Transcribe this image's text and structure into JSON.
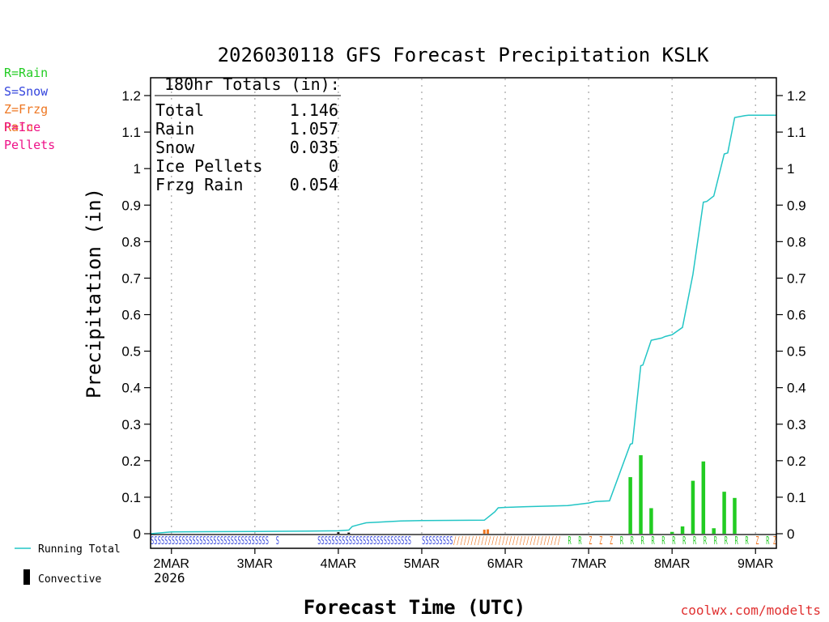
{
  "colors": {
    "rain": "#22cc22",
    "snow": "#3344dd",
    "frzg_rain": "#ee7722",
    "ice_pellets": "#ee1188",
    "running_total": "#22c5c5",
    "convective": "#000000",
    "credit": "#e03030",
    "grid": "#aaaaaa"
  },
  "precip_legend": [
    {
      "label": "R=Rain",
      "color_key": "rain"
    },
    {
      "label": "S=Snow",
      "color_key": "snow"
    },
    {
      "label": "Z=Frzg Rain",
      "color_key": "frzg_rain"
    },
    {
      "label": "P=Ice Pellets",
      "color_key": "ice_pellets"
    }
  ],
  "footer": {
    "running_total_label": "Running Total",
    "convective_label": "Convective",
    "credit": "coolwx.com/modelts"
  },
  "chart_data": {
    "type": "bar",
    "title": "2026030118 GFS Forecast Precipitation KSLK",
    "xlabel": "Forecast Time (UTC)",
    "ylabel": "Precipitation (in)",
    "ylim": [
      0,
      1.25
    ],
    "y_ticks": [
      0,
      0.1,
      0.2,
      0.3,
      0.4,
      0.5,
      0.6,
      0.7,
      0.8,
      0.9,
      1,
      1.1,
      1.2
    ],
    "y_tick_labels": [
      "0",
      "0.1",
      "0.2",
      "0.3",
      "0.4",
      "0.5",
      "0.6",
      "0.7",
      "0.8",
      "0.9",
      "1",
      "1.1",
      "1.2"
    ],
    "x_unit": "forecast hour",
    "xlim": [
      0,
      180
    ],
    "x_ticks": [
      6,
      30,
      54,
      78,
      102,
      126,
      150,
      174
    ],
    "x_tick_labels": [
      "2MAR",
      "3MAR",
      "4MAR",
      "5MAR",
      "6MAR",
      "7MAR",
      "8MAR",
      "9MAR"
    ],
    "x_sub_label": "2026",
    "grid": true,
    "totals_box": {
      "header": "180hr Totals (in):",
      "rows": [
        {
          "label": "Total",
          "value": "1.146"
        },
        {
          "label": "Rain",
          "value": "1.057"
        },
        {
          "label": "Snow",
          "value": "0.035"
        },
        {
          "label": "Ice Pellets",
          "value": "0"
        },
        {
          "label": "Frzg Rain",
          "value": "0.054"
        }
      ]
    },
    "running_total": {
      "name": "Running Total",
      "x": [
        0,
        6,
        30,
        54,
        57,
        58,
        60,
        62,
        66,
        72,
        78,
        96,
        99,
        100,
        102,
        108,
        120,
        126,
        128,
        132,
        138,
        138.6,
        141,
        141.6,
        144,
        147,
        148,
        150,
        153,
        156,
        159,
        160,
        162,
        165,
        166,
        168,
        171,
        172,
        174,
        176,
        180
      ],
      "values": [
        0,
        0.005,
        0.006,
        0.008,
        0.01,
        0.02,
        0.025,
        0.03,
        0.032,
        0.035,
        0.036,
        0.037,
        0.06,
        0.071,
        0.072,
        0.074,
        0.077,
        0.084,
        0.088,
        0.09,
        0.245,
        0.247,
        0.46,
        0.462,
        0.53,
        0.536,
        0.54,
        0.545,
        0.565,
        0.71,
        0.908,
        0.91,
        0.925,
        1.04,
        1.043,
        1.14,
        1.145,
        1.146,
        1.146,
        1.146,
        1.146
      ]
    },
    "series": [
      {
        "name": "Rain",
        "color_key": "rain",
        "x": [
          138,
          141,
          144,
          150,
          153,
          156,
          159,
          162,
          165,
          168
        ],
        "values": [
          0.155,
          0.215,
          0.07,
          0.005,
          0.02,
          0.145,
          0.198,
          0.015,
          0.115,
          0.098
        ]
      },
      {
        "name": "Frzg Rain",
        "color_key": "frzg_rain",
        "x": [
          96,
          97
        ],
        "values": [
          0.011,
          0.012
        ]
      },
      {
        "name": "Convective",
        "color_key": "convective",
        "x": [
          54,
          57
        ],
        "values": [
          0.004,
          0.003
        ]
      }
    ],
    "ptype_strip": [
      {
        "type": "snow",
        "from": 0,
        "to": 24,
        "char": "S"
      },
      {
        "type": "snow",
        "from": 24,
        "to": 34,
        "char": "S"
      },
      {
        "type": "snow",
        "from": 36,
        "to": 37,
        "char": "S"
      },
      {
        "type": "snow",
        "from": 48,
        "to": 75,
        "char": "S"
      },
      {
        "type": "snow",
        "from": 78,
        "to": 87,
        "char": "S"
      },
      {
        "type": "frzg_rain",
        "from": 87,
        "to": 118,
        "char": "/"
      },
      {
        "type": "rain",
        "from": 120,
        "to": 121,
        "char": "R"
      },
      {
        "type": "rain",
        "from": 123,
        "to": 124,
        "char": "R"
      },
      {
        "type": "frzg_rain",
        "from": 126,
        "to": 127,
        "char": "Z"
      },
      {
        "type": "frzg_rain",
        "from": 129,
        "to": 130,
        "char": "Z"
      },
      {
        "type": "frzg_rain",
        "from": 132,
        "to": 133,
        "char": "Z"
      },
      {
        "type": "rain",
        "from": 135,
        "to": 136,
        "char": "R"
      },
      {
        "type": "rain",
        "from": 138,
        "to": 139,
        "char": "R"
      },
      {
        "type": "rain",
        "from": 141,
        "to": 142,
        "char": "R"
      },
      {
        "type": "rain",
        "from": 144,
        "to": 145,
        "char": "R"
      },
      {
        "type": "rain",
        "from": 147,
        "to": 148,
        "char": "R"
      },
      {
        "type": "rain",
        "from": 150,
        "to": 151,
        "char": "R"
      },
      {
        "type": "rain",
        "from": 153,
        "to": 154,
        "char": "R"
      },
      {
        "type": "rain",
        "from": 156,
        "to": 157,
        "char": "R"
      },
      {
        "type": "rain",
        "from": 159,
        "to": 160,
        "char": "R"
      },
      {
        "type": "rain",
        "from": 162,
        "to": 163,
        "char": "R"
      },
      {
        "type": "rain",
        "from": 165,
        "to": 166,
        "char": "R"
      },
      {
        "type": "rain",
        "from": 168,
        "to": 169,
        "char": "R"
      },
      {
        "type": "rain",
        "from": 171,
        "to": 172,
        "char": "R"
      },
      {
        "type": "frzg_rain",
        "from": 174,
        "to": 175,
        "char": "Z"
      },
      {
        "type": "rain",
        "from": 177,
        "to": 178,
        "char": "R"
      },
      {
        "type": "frzg_rain",
        "from": 179,
        "to": 180,
        "char": "Z"
      }
    ]
  }
}
